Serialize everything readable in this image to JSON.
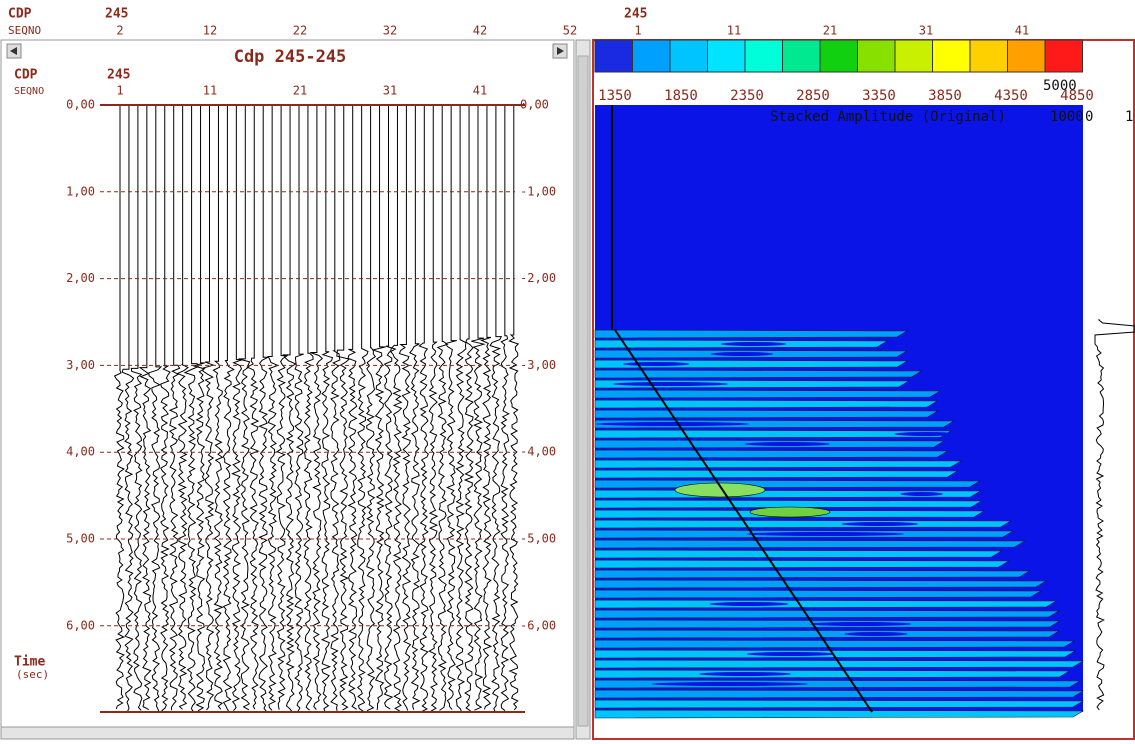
{
  "top_header": {
    "cdp_label": "CDP",
    "cdp_value": "245",
    "seqno_label": "SEQNO",
    "seqno_ticks": [
      "2",
      "12",
      "22",
      "32",
      "42",
      "52"
    ],
    "right_cdp_value": "245",
    "right_seqno_ticks": [
      "1",
      "11",
      "21",
      "31",
      "41"
    ]
  },
  "gather_panel": {
    "title": "Cdp 245-245",
    "cdp_label": "CDP",
    "cdp_value": "245",
    "seqno_label": "SEQNO",
    "seqno_ticks": [
      "1",
      "11",
      "21",
      "31",
      "41"
    ],
    "time_ticks_left": [
      "0,00",
      "1,00",
      "2,00",
      "3,00",
      "4,00",
      "5,00",
      "6,00"
    ],
    "time_ticks_right": [
      "0,00",
      "-1,00",
      "-2,00",
      "-3,00",
      "-4,00",
      "-5,00",
      "-6,00"
    ],
    "axis_label": "Time",
    "axis_unit": "(sec)"
  },
  "velocity_panel": {
    "color_ticks": [
      "1350",
      "1850",
      "2350",
      "2850",
      "3350",
      "3850",
      "4350",
      "4850"
    ],
    "color_max": "5000",
    "title": "Stacked Amplitude (Original)",
    "amp_labels": [
      "1000",
      "0",
      "1"
    ]
  }
}
